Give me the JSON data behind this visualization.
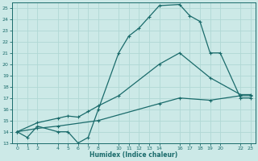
{
  "xlabel": "Humidex (Indice chaleur)",
  "bg_color": "#cce9e7",
  "grid_color": "#b0d8d4",
  "line_color": "#1a6b6b",
  "ylim": [
    13,
    25.5
  ],
  "xlim": [
    -0.5,
    23.5
  ],
  "yticks": [
    13,
    14,
    15,
    16,
    17,
    18,
    19,
    20,
    21,
    22,
    23,
    24,
    25
  ],
  "xticks": [
    0,
    1,
    2,
    4,
    5,
    6,
    7,
    8,
    10,
    11,
    12,
    13,
    14,
    16,
    17,
    18,
    19,
    20,
    22,
    23
  ],
  "line1_x": [
    0,
    1,
    2,
    4,
    5,
    6,
    7,
    8,
    10,
    11,
    12,
    13,
    14,
    16,
    17,
    18,
    19,
    20,
    22,
    23
  ],
  "line1_y": [
    14,
    13.5,
    14.5,
    14,
    14,
    13,
    13.5,
    16,
    21,
    22.5,
    23.2,
    24.2,
    25.2,
    25.3,
    24.3,
    23.8,
    21,
    21,
    17,
    17
  ],
  "line2_x": [
    0,
    2,
    4,
    5,
    6,
    7,
    8,
    10,
    14,
    16,
    19,
    22,
    23
  ],
  "line2_y": [
    14,
    14.8,
    15.2,
    15.4,
    15.3,
    15.8,
    16.3,
    17.2,
    20.0,
    21.0,
    18.8,
    17.3,
    17.3
  ],
  "line3_x": [
    0,
    2,
    4,
    8,
    14,
    16,
    19,
    22,
    23
  ],
  "line3_y": [
    14,
    14.3,
    14.5,
    15.0,
    16.5,
    17.0,
    16.8,
    17.2,
    17.2
  ]
}
